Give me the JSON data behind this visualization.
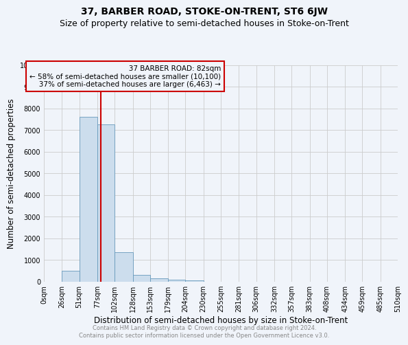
{
  "title": "37, BARBER ROAD, STOKE-ON-TRENT, ST6 6JW",
  "subtitle": "Size of property relative to semi-detached houses in Stoke-on-Trent",
  "xlabel": "Distribution of semi-detached houses by size in Stoke-on-Trent",
  "ylabel": "Number of semi-detached properties",
  "footer": "Contains HM Land Registry data © Crown copyright and database right 2024.\nContains public sector information licensed under the Open Government Licence v3.0.",
  "bin_edges": [
    0,
    26,
    51,
    77,
    102,
    128,
    153,
    179,
    204,
    230,
    255,
    281,
    306,
    332,
    357,
    383,
    408,
    434,
    459,
    485,
    510
  ],
  "bar_values": [
    0,
    500,
    7600,
    7250,
    1350,
    300,
    150,
    75,
    50,
    0,
    0,
    0,
    0,
    0,
    0,
    0,
    0,
    0,
    0,
    0
  ],
  "bar_color": "#ccdded",
  "bar_edge_color": "#6699bb",
  "property_size": 82,
  "property_label": "37 BARBER ROAD: 82sqm",
  "annotation_line1": "← 58% of semi-detached houses are smaller (10,100)",
  "annotation_line2": "   37% of semi-detached houses are larger (6,463) →",
  "vline_color": "#cc0000",
  "annotation_box_edge": "#cc0000",
  "ylim": [
    0,
    10000
  ],
  "tick_labels": [
    "0sqm",
    "26sqm",
    "51sqm",
    "77sqm",
    "102sqm",
    "128sqm",
    "153sqm",
    "179sqm",
    "204sqm",
    "230sqm",
    "255sqm",
    "281sqm",
    "306sqm",
    "332sqm",
    "357sqm",
    "383sqm",
    "408sqm",
    "434sqm",
    "459sqm",
    "485sqm",
    "510sqm"
  ],
  "background_color": "#f0f4fa",
  "grid_color": "#cccccc",
  "title_fontsize": 10,
  "subtitle_fontsize": 9,
  "axis_label_fontsize": 8.5,
  "tick_fontsize": 7,
  "annotation_fontsize": 7.5,
  "footer_fontsize": 6,
  "yticks": [
    0,
    1000,
    2000,
    3000,
    4000,
    5000,
    6000,
    7000,
    8000,
    9000,
    10000
  ]
}
